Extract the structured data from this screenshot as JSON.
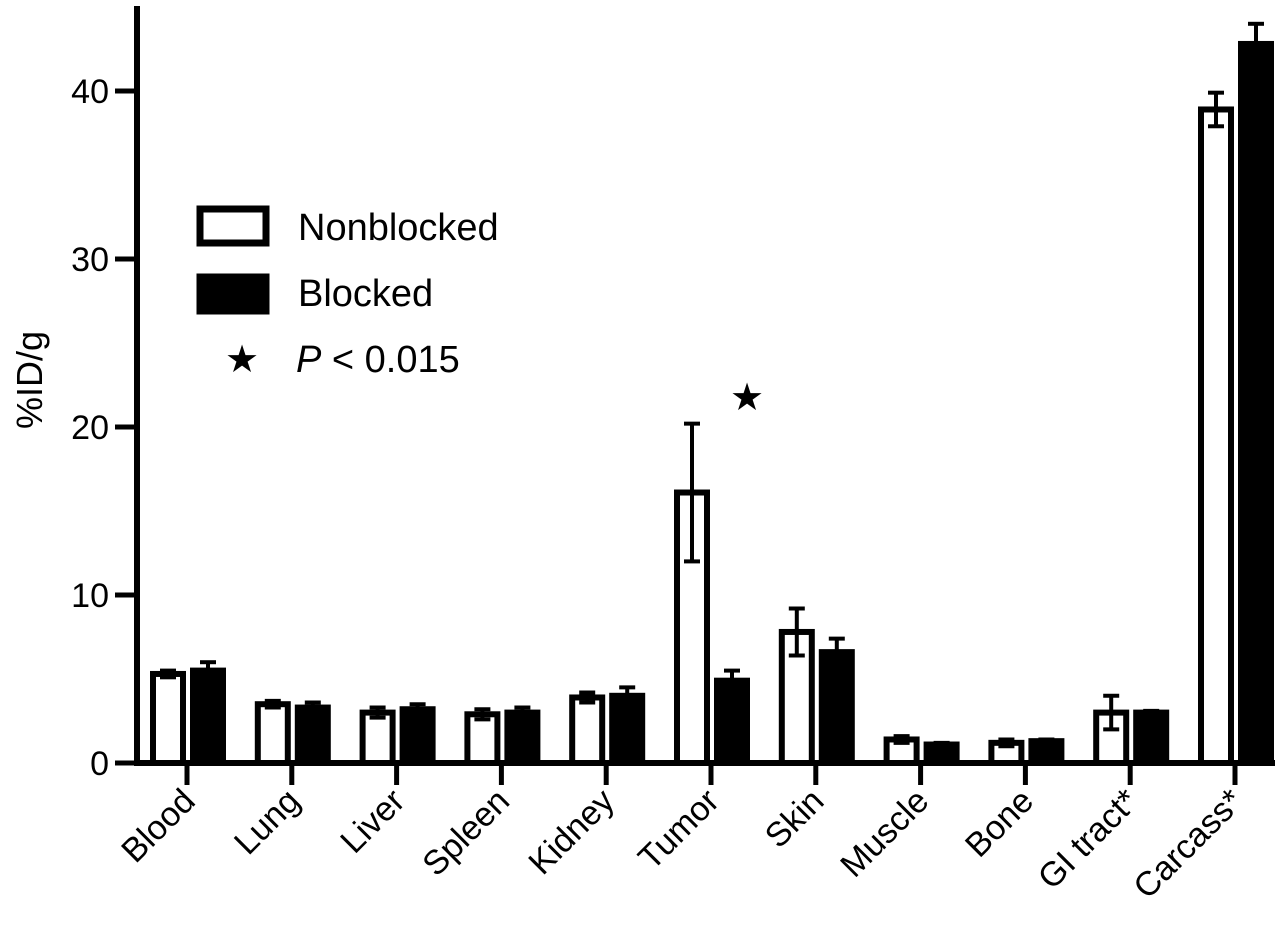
{
  "chart_data": {
    "type": "bar",
    "ylabel": "%ID/g",
    "xlabel": "",
    "ylim": [
      0,
      44
    ],
    "yticks": [
      0,
      10,
      20,
      30,
      40
    ],
    "grid": false,
    "legend_placement": "top-left",
    "categories": [
      "Blood",
      "Lung",
      "Liver",
      "Spleen",
      "Kidney",
      "Tumor",
      "Skin",
      "Muscle",
      "Bone",
      "GI tract*",
      "Carcass*"
    ],
    "series": [
      {
        "name": "Nonblocked",
        "fill": "#ffffff",
        "values": [
          5.3,
          3.5,
          3.0,
          2.9,
          3.9,
          16.1,
          7.8,
          1.4,
          1.2,
          3.0,
          38.9
        ],
        "errors": [
          0.2,
          0.2,
          0.3,
          0.3,
          0.3,
          4.1,
          1.4,
          0.2,
          0.2,
          1.0,
          1.0
        ]
      },
      {
        "name": "Blocked",
        "fill": "#000000",
        "values": [
          5.5,
          3.3,
          3.2,
          3.0,
          4.0,
          4.9,
          6.6,
          1.1,
          1.3,
          3.0,
          42.8
        ],
        "errors": [
          0.5,
          0.3,
          0.3,
          0.3,
          0.5,
          0.6,
          0.8,
          0.1,
          0.1,
          0.1,
          1.2
        ]
      }
    ],
    "significance": {
      "symbol": "★",
      "label_prefix": "P",
      "label_rest": " < 0.015",
      "category": "Tumor"
    }
  }
}
